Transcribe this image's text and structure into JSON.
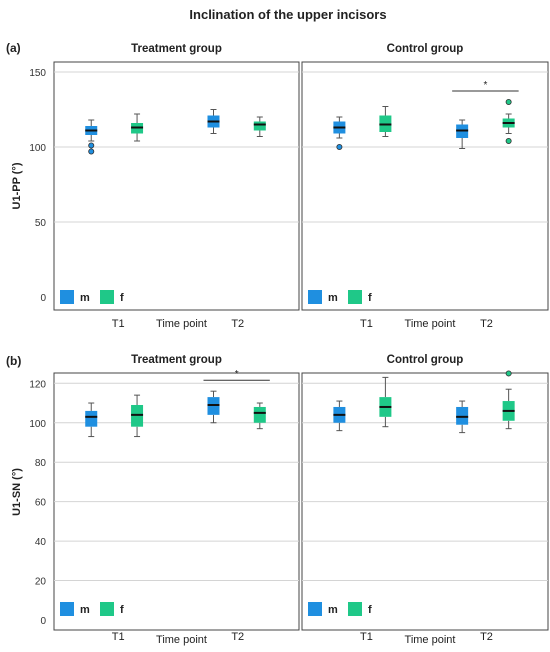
{
  "figure_title": "Inclination  of the upper incisors",
  "colors": {
    "m": "#1f8fe0",
    "f": "#1fc888",
    "median": "#111111",
    "grid": "#d4d4d4",
    "frame": "#444444"
  },
  "chart_data": [
    {
      "type": "box",
      "panel_label": "(a)",
      "ylabel": "U1-PP (°)",
      "xlabel": "Time point",
      "ylim": [
        0,
        160
      ],
      "yticks": [
        0,
        50,
        100,
        150
      ],
      "grid": true,
      "legend": [
        {
          "name": "m",
          "color": "#1f8fe0"
        },
        {
          "name": "f",
          "color": "#1fc888"
        }
      ],
      "legend_position": "bottom-left",
      "categories": [
        "T1",
        "T2"
      ],
      "facets": [
        {
          "title": "Treatment group",
          "significance": [],
          "boxes": [
            {
              "time": "T1",
              "sex": "m",
              "min": 104,
              "q1": 108,
              "median": 111,
              "q3": 114,
              "max": 118,
              "outliers": [
                101,
                97
              ]
            },
            {
              "time": "T1",
              "sex": "f",
              "min": 104,
              "q1": 109,
              "median": 113,
              "q3": 116,
              "max": 122,
              "outliers": []
            },
            {
              "time": "T2",
              "sex": "m",
              "min": 109,
              "q1": 113,
              "median": 117,
              "q3": 121,
              "max": 125,
              "outliers": []
            },
            {
              "time": "T2",
              "sex": "f",
              "min": 107,
              "q1": 111,
              "median": 115,
              "q3": 117,
              "max": 120,
              "outliers": []
            }
          ]
        },
        {
          "title": "Control group",
          "significance": [
            {
              "from": "T2-m",
              "to": "T2-f",
              "label": "*"
            }
          ],
          "boxes": [
            {
              "time": "T1",
              "sex": "m",
              "min": 106,
              "q1": 109,
              "median": 113,
              "q3": 117,
              "max": 120,
              "outliers": [
                100
              ]
            },
            {
              "time": "T1",
              "sex": "f",
              "min": 107,
              "q1": 110,
              "median": 115,
              "q3": 121,
              "max": 127,
              "outliers": []
            },
            {
              "time": "T2",
              "sex": "m",
              "min": 99,
              "q1": 106,
              "median": 111,
              "q3": 115,
              "max": 118,
              "outliers": []
            },
            {
              "time": "T2",
              "sex": "f",
              "min": 109,
              "q1": 113,
              "median": 116,
              "q3": 119,
              "max": 122,
              "outliers": [
                130,
                104
              ]
            }
          ]
        }
      ]
    },
    {
      "type": "box",
      "panel_label": "(b)",
      "ylabel": "U1-SN (°)",
      "xlabel": "Time point",
      "ylim": [
        0,
        138
      ],
      "yticks": [
        0,
        20,
        40,
        60,
        80,
        100,
        120
      ],
      "grid": true,
      "legend": [
        {
          "name": "m",
          "color": "#1f8fe0"
        },
        {
          "name": "f",
          "color": "#1fc888"
        }
      ],
      "legend_position": "bottom-left",
      "categories": [
        "T1",
        "T2"
      ],
      "facets": [
        {
          "title": "Treatment group",
          "significance": [
            {
              "from": "T2-m",
              "to": "T2-f",
              "label": "*"
            }
          ],
          "boxes": [
            {
              "time": "T1",
              "sex": "m",
              "min": 93,
              "q1": 98,
              "median": 103,
              "q3": 106,
              "max": 110,
              "outliers": []
            },
            {
              "time": "T1",
              "sex": "f",
              "min": 93,
              "q1": 98,
              "median": 104,
              "q3": 109,
              "max": 114,
              "outliers": []
            },
            {
              "time": "T2",
              "sex": "m",
              "min": 100,
              "q1": 104,
              "median": 109,
              "q3": 113,
              "max": 116,
              "outliers": []
            },
            {
              "time": "T2",
              "sex": "f",
              "min": 97,
              "q1": 100,
              "median": 105,
              "q3": 108,
              "max": 110,
              "outliers": []
            }
          ]
        },
        {
          "title": "Control group",
          "significance": [],
          "boxes": [
            {
              "time": "T1",
              "sex": "m",
              "min": 96,
              "q1": 100,
              "median": 104,
              "q3": 108,
              "max": 111,
              "outliers": []
            },
            {
              "time": "T1",
              "sex": "f",
              "min": 98,
              "q1": 103,
              "median": 108,
              "q3": 113,
              "max": 123,
              "outliers": []
            },
            {
              "time": "T2",
              "sex": "m",
              "min": 95,
              "q1": 99,
              "median": 103,
              "q3": 108,
              "max": 111,
              "outliers": []
            },
            {
              "time": "T2",
              "sex": "f",
              "min": 97,
              "q1": 101,
              "median": 106,
              "q3": 111,
              "max": 117,
              "outliers": [
                125
              ]
            }
          ]
        }
      ]
    }
  ]
}
